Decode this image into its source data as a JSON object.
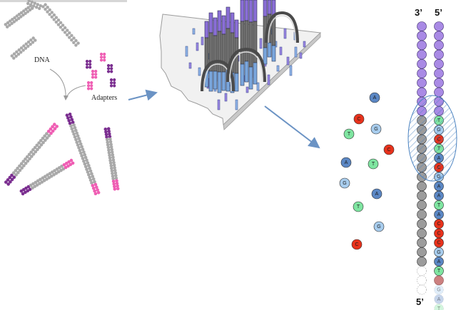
{
  "labels": {
    "dna": "DNA",
    "adapters": "Adapters",
    "strand_top_left": "3’",
    "strand_top_right": "5’",
    "strand_bottom": "5’"
  },
  "colors": {
    "dna": "#a9a9a9",
    "adapter_purple": "#7b2f90",
    "adapter_pink": "#ef5fb4",
    "A": "#5b87c4",
    "C": "#e8321c",
    "G": "#a8cdee",
    "T": "#7fe5a1",
    "primer": "#a98ae5",
    "strand_grey": "#9c9c9c",
    "arrow": "#6b93c4"
  },
  "free_nucleotides": [
    "A",
    "C",
    "G",
    "T",
    "C",
    "A",
    "T",
    "G",
    "A",
    "T",
    "G",
    "C"
  ],
  "template_strand": {
    "primer_count": 10,
    "grey_count": 16,
    "faded_count": 3
  },
  "synthesized_strand": {
    "primer_count": 10,
    "bases": [
      "T",
      "G",
      "C",
      "T",
      "A",
      "C",
      "G",
      "A",
      "A",
      "T",
      "A",
      "C",
      "C",
      "C",
      "G",
      "A",
      "T"
    ],
    "pending_base": "C",
    "faded_bases": [
      "G",
      "A",
      "T"
    ]
  }
}
